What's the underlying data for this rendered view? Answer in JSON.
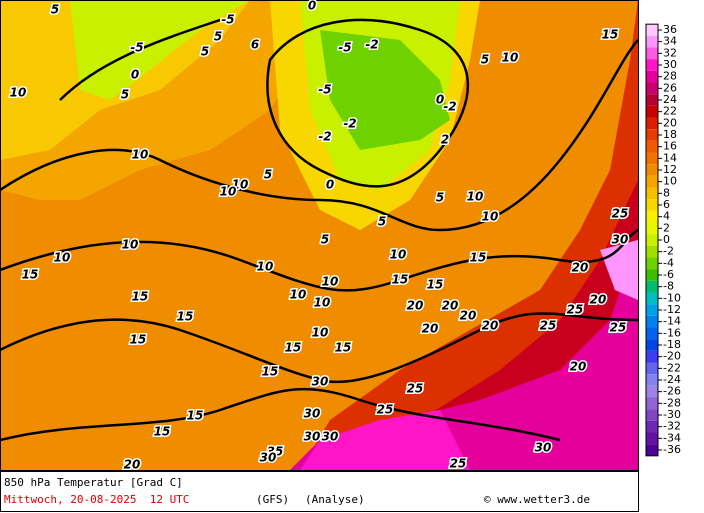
{
  "map": {
    "labels": [
      5,
      -5,
      0,
      5,
      10,
      5,
      6,
      0,
      -5,
      0,
      -5,
      0,
      5,
      10,
      15,
      10,
      10,
      10,
      5,
      10,
      15,
      15,
      15,
      10,
      10,
      10,
      10,
      10,
      5,
      10,
      10,
      10,
      15,
      15,
      20,
      20,
      20,
      20,
      20,
      25,
      20,
      25,
      20,
      25,
      30,
      25,
      20,
      30,
      25,
      25,
      30,
      30,
      30,
      35,
      30,
      20,
      25,
      30,
      15,
      15,
      15,
      15,
      15,
      10,
      15,
      15,
      5,
      5,
      5,
      -5,
      -2,
      -2,
      -2,
      -2,
      2
    ]
  },
  "colorbar": {
    "ticks": [
      36,
      34,
      32,
      30,
      28,
      26,
      24,
      22,
      20,
      18,
      16,
      14,
      12,
      10,
      8,
      6,
      4,
      2,
      0,
      -2,
      -4,
      -6,
      -8,
      -10,
      -12,
      -14,
      -16,
      -18,
      -20,
      -22,
      -24,
      -26,
      -28,
      -30,
      -32,
      -34,
      -36
    ],
    "colors": [
      "#ffc8ff",
      "#ff96ff",
      "#ff5ae6",
      "#ff14c8",
      "#e6009b",
      "#c8006e",
      "#b40032",
      "#c80000",
      "#dc1e00",
      "#e63c00",
      "#f05a00",
      "#f07300",
      "#f08c00",
      "#f5a500",
      "#f8be00",
      "#f8d700",
      "#f8f000",
      "#e6f800",
      "#c8f000",
      "#a0e000",
      "#6ed200",
      "#3cbe00",
      "#00be6e",
      "#00bebe",
      "#00a0e6",
      "#0082f0",
      "#0064f0",
      "#0046e6",
      "#3c3cf0",
      "#6464f0",
      "#8282f0",
      "#a082e6",
      "#9064d2",
      "#8246c3",
      "#7028b4",
      "#6414a5",
      "#500096"
    ]
  },
  "footer": {
    "title": "850 hPa Temperatur [Grad C]",
    "date": "Mittwoch, 20-08-2025  12 UTC",
    "model": "(GFS)",
    "run": "(Analyse)",
    "credit": "© www.wetter3.de"
  }
}
